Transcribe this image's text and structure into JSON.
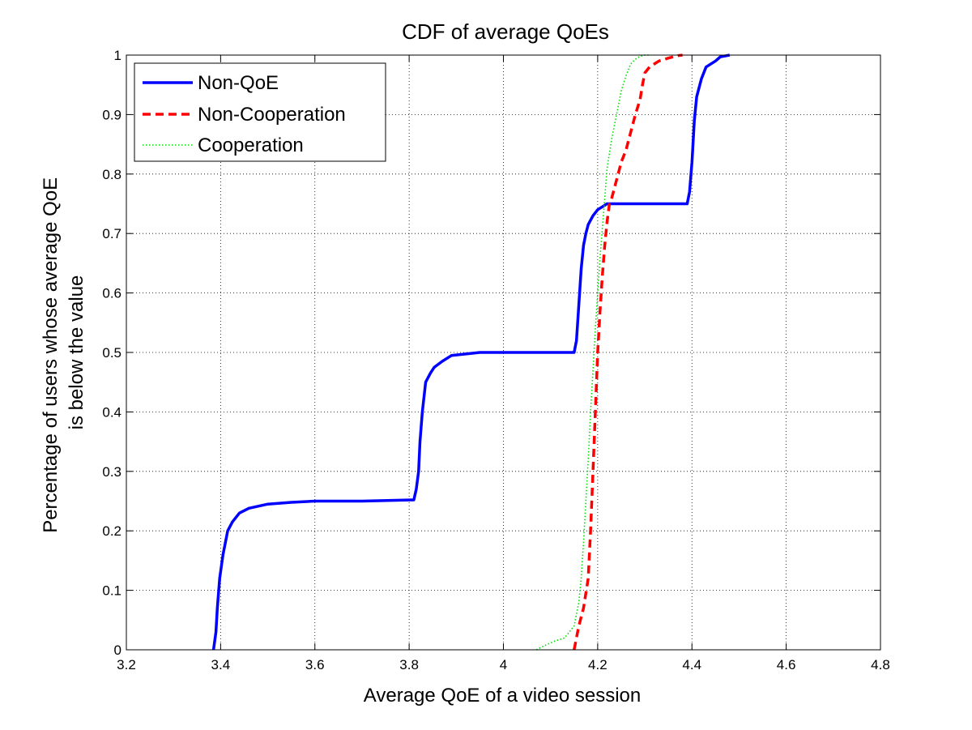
{
  "chart_data": {
    "type": "line",
    "title": "CDF of average QoEs",
    "xlabel": "Average QoE of a video session",
    "ylabel_lines": [
      "Percentage of users whose average QoE",
      "is below the value"
    ],
    "xlim": [
      3.2,
      4.8
    ],
    "ylim": [
      0,
      1
    ],
    "xticks": [
      "3.2",
      "3.4",
      "3.6",
      "3.8",
      "4",
      "4.2",
      "4.4",
      "4.6",
      "4.8"
    ],
    "yticks": [
      "0",
      "0.1",
      "0.2",
      "0.3",
      "0.4",
      "0.5",
      "0.6",
      "0.7",
      "0.8",
      "0.9",
      "1"
    ],
    "grid": true,
    "legend_position": "top-left",
    "series": [
      {
        "name": "Non-QoE",
        "color": "#0000ff",
        "style": "solid",
        "x": [
          3.385,
          3.39,
          3.393,
          3.398,
          3.405,
          3.415,
          3.425,
          3.44,
          3.46,
          3.5,
          3.55,
          3.6,
          3.7,
          3.81,
          3.815,
          3.82,
          3.823,
          3.828,
          3.835,
          3.845,
          3.853,
          3.87,
          3.89,
          3.95,
          4.0,
          4.1,
          4.15,
          4.155,
          4.16,
          4.165,
          4.17,
          4.175,
          4.18,
          4.19,
          4.2,
          4.21,
          4.22,
          4.3,
          4.39,
          4.395,
          4.4,
          4.405,
          4.41,
          4.42,
          4.43,
          4.45,
          4.46,
          4.48
        ],
        "y": [
          0.0,
          0.03,
          0.07,
          0.12,
          0.16,
          0.2,
          0.215,
          0.23,
          0.238,
          0.245,
          0.248,
          0.25,
          0.25,
          0.252,
          0.27,
          0.3,
          0.35,
          0.4,
          0.45,
          0.465,
          0.475,
          0.485,
          0.495,
          0.5,
          0.5,
          0.5,
          0.5,
          0.52,
          0.58,
          0.64,
          0.68,
          0.7,
          0.715,
          0.73,
          0.74,
          0.745,
          0.75,
          0.75,
          0.75,
          0.77,
          0.82,
          0.89,
          0.93,
          0.96,
          0.98,
          0.99,
          0.997,
          1.0
        ]
      },
      {
        "name": "Non-Cooperation",
        "color": "#ff0000",
        "style": "dashed",
        "x": [
          4.15,
          4.16,
          4.17,
          4.18,
          4.185,
          4.19,
          4.195,
          4.2,
          4.205,
          4.21,
          4.215,
          4.22,
          4.225,
          4.23,
          4.24,
          4.25,
          4.26,
          4.27,
          4.28,
          4.29,
          4.295,
          4.3,
          4.31,
          4.32,
          4.33,
          4.35,
          4.37,
          4.38
        ],
        "y": [
          0.0,
          0.04,
          0.07,
          0.12,
          0.2,
          0.3,
          0.4,
          0.5,
          0.57,
          0.63,
          0.68,
          0.72,
          0.75,
          0.76,
          0.79,
          0.82,
          0.84,
          0.87,
          0.9,
          0.925,
          0.95,
          0.97,
          0.98,
          0.985,
          0.99,
          0.995,
          0.999,
          1.0
        ]
      },
      {
        "name": "Cooperation",
        "color": "#00dd00",
        "style": "dotted",
        "x": [
          4.07,
          4.09,
          4.11,
          4.13,
          4.15,
          4.16,
          4.165,
          4.17,
          4.175,
          4.18,
          4.185,
          4.19,
          4.195,
          4.2,
          4.205,
          4.21,
          4.215,
          4.22,
          4.23,
          4.24,
          4.25,
          4.26,
          4.27,
          4.28,
          4.29,
          4.3,
          4.31
        ],
        "y": [
          0.0,
          0.008,
          0.015,
          0.02,
          0.04,
          0.08,
          0.12,
          0.18,
          0.25,
          0.32,
          0.4,
          0.47,
          0.54,
          0.6,
          0.66,
          0.71,
          0.76,
          0.81,
          0.86,
          0.9,
          0.94,
          0.965,
          0.985,
          0.993,
          0.998,
          1.0,
          1.0
        ]
      }
    ]
  }
}
